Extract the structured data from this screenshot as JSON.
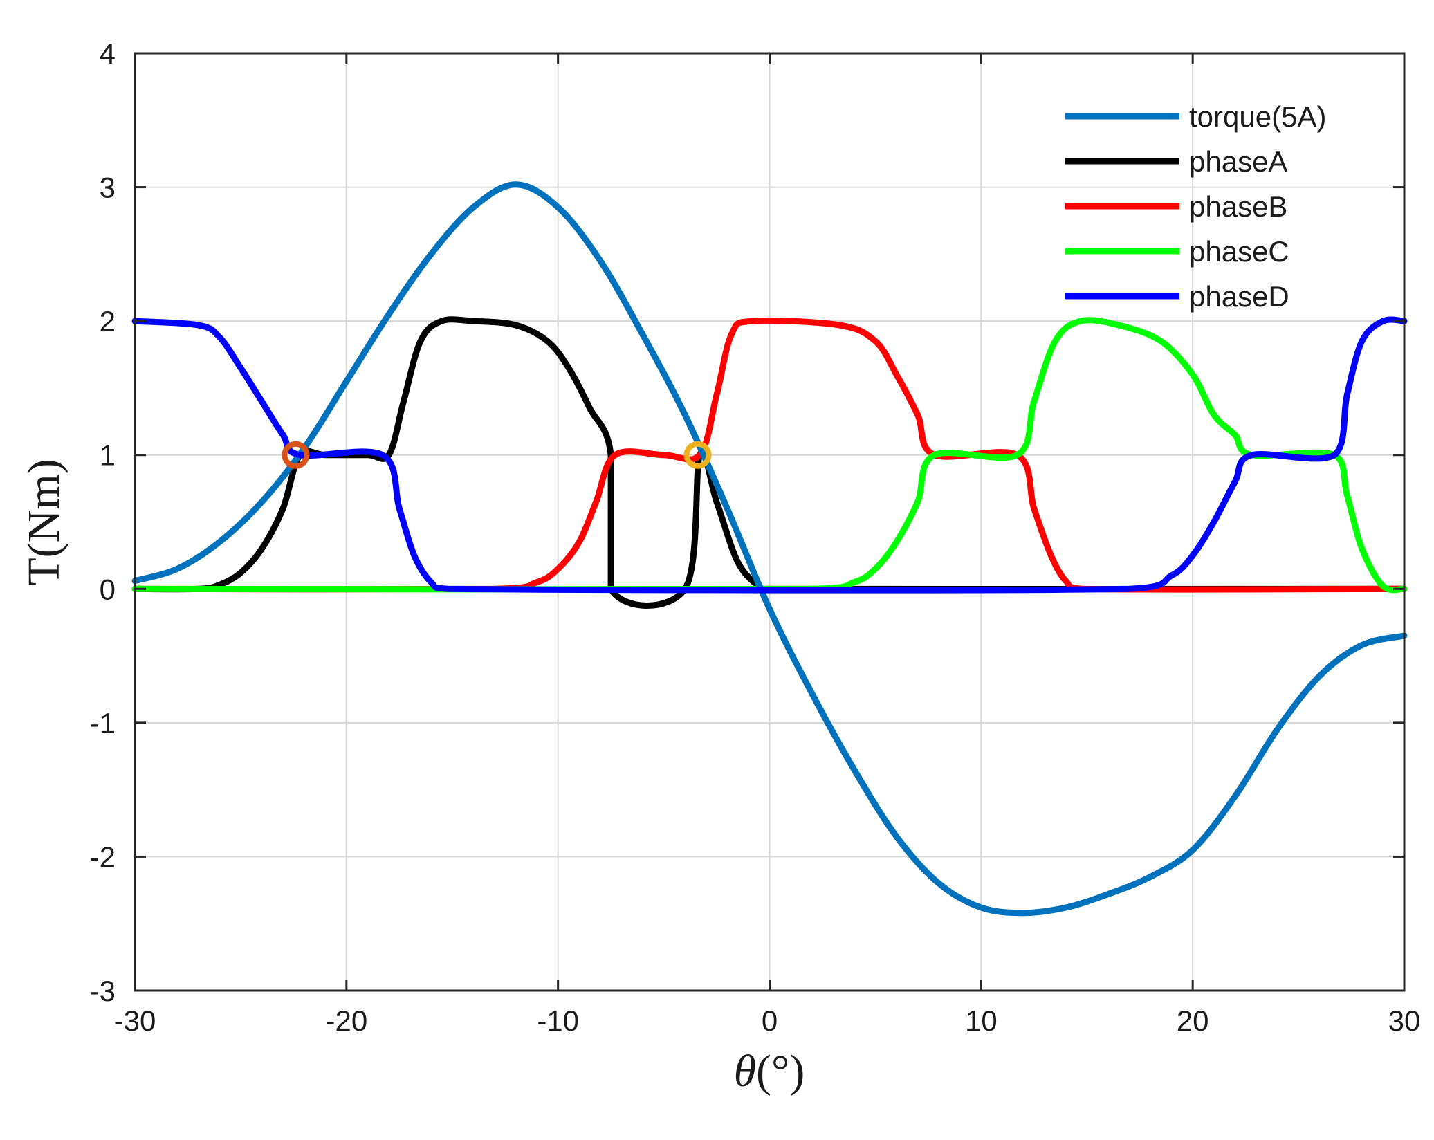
{
  "chart_data": {
    "type": "line",
    "title": "",
    "xlabel_symbol": "θ",
    "xlabel_unit": "(°)",
    "ylabel": "T(Nm)",
    "xlim": [
      -30,
      30
    ],
    "ylim": [
      -3,
      4
    ],
    "grid": true,
    "legend_position": "top-right",
    "xticks": [
      -30,
      -20,
      -10,
      0,
      10,
      20,
      30
    ],
    "yticks": [
      -3,
      -2,
      -1,
      0,
      1,
      2,
      3,
      4
    ],
    "xtick_labels": [
      "-30",
      "-20",
      "-10",
      "0",
      "10",
      "20",
      "30"
    ],
    "ytick_labels": [
      "-3",
      "-2",
      "-1",
      "0",
      "1",
      "2",
      "3",
      "4"
    ],
    "series": [
      {
        "name": "torque(5A)",
        "color": "#0072BD",
        "x": [
          -30,
          -28,
          -26,
          -24,
          -22,
          -20,
          -18,
          -16,
          -14,
          -12,
          -10,
          -8,
          -6,
          -4,
          -2,
          0,
          2,
          4,
          6,
          8,
          10,
          12,
          14,
          16,
          18,
          20,
          22,
          24,
          26,
          28,
          30
        ],
        "y": [
          0.06,
          0.15,
          0.35,
          0.65,
          1.05,
          1.55,
          2.05,
          2.5,
          2.85,
          3.02,
          2.85,
          2.45,
          1.9,
          1.3,
          0.6,
          -0.15,
          -0.78,
          -1.35,
          -1.85,
          -2.2,
          -2.38,
          -2.42,
          -2.38,
          -2.28,
          -2.15,
          -1.95,
          -1.55,
          -1.05,
          -0.65,
          -0.42,
          -0.35
        ]
      },
      {
        "name": "phaseA",
        "color": "#000000",
        "x": [
          -30,
          -27,
          -26,
          -25,
          -24,
          -23,
          -22.2,
          -21,
          -19,
          -18,
          -17.3,
          -16.5,
          -15.5,
          -14,
          -12,
          -10.5,
          -9.5,
          -8.5,
          -7.5,
          -7.5,
          -4,
          -3.3,
          -2.5,
          -1.5,
          -0.5,
          0,
          30
        ],
        "y": [
          0,
          0,
          0.03,
          0.12,
          0.3,
          0.6,
          1,
          1,
          1,
          1,
          1.4,
          1.85,
          2,
          2,
          1.97,
          1.85,
          1.65,
          1.35,
          1,
          0,
          0,
          1,
          0.65,
          0.2,
          0.02,
          0,
          0
        ]
      },
      {
        "name": "phaseB",
        "color": "#FF0000",
        "x": [
          -30,
          -13,
          -11,
          -10,
          -9,
          -8.2,
          -7.3,
          -5,
          -3.3,
          -2.5,
          -1.8,
          -0.8,
          3.3,
          5,
          6,
          7,
          7.8,
          11.7,
          12.5,
          13.3,
          14,
          14.8,
          30
        ],
        "y": [
          0,
          0,
          0.05,
          0.15,
          0.35,
          0.65,
          1,
          1,
          1,
          1.45,
          1.9,
          2,
          1.97,
          1.85,
          1.6,
          1.3,
          1,
          1,
          0.6,
          0.25,
          0.06,
          0,
          0
        ]
      },
      {
        "name": "phaseC",
        "color": "#00FF00",
        "x": [
          -30,
          2,
          4,
          5,
          6,
          7,
          7.8,
          11.7,
          12.5,
          13.5,
          14.7,
          16.5,
          18.5,
          20,
          21,
          22,
          22.8,
          26.7,
          27.3,
          28,
          29,
          30
        ],
        "y": [
          0,
          0,
          0.05,
          0.15,
          0.35,
          0.65,
          1,
          1,
          1.4,
          1.85,
          2,
          1.97,
          1.85,
          1.6,
          1.3,
          1.15,
          1,
          1,
          0.7,
          0.3,
          0.02,
          0
        ]
      },
      {
        "name": "phaseD",
        "color": "#0000FF",
        "x": [
          -30,
          -27,
          -26,
          -25,
          -24,
          -23,
          -22.2,
          -18.3,
          -17.5,
          -16.8,
          -16,
          -15.2,
          17,
          19,
          20,
          21,
          22,
          22.8,
          26.7,
          27.3,
          28,
          29,
          30
        ],
        "y": [
          2,
          1.97,
          1.88,
          1.65,
          1.4,
          1.15,
          1,
          1,
          0.6,
          0.25,
          0.05,
          0,
          0,
          0.1,
          0.25,
          0.5,
          0.8,
          1,
          1,
          1.45,
          1.85,
          2,
          2
        ]
      }
    ],
    "markers": [
      {
        "name": "intersection-marker-1",
        "x": -22.4,
        "y": 1.0,
        "color": "#D95319"
      },
      {
        "name": "intersection-marker-2",
        "x": -3.4,
        "y": 1.0,
        "color": "#EDB120"
      }
    ]
  }
}
